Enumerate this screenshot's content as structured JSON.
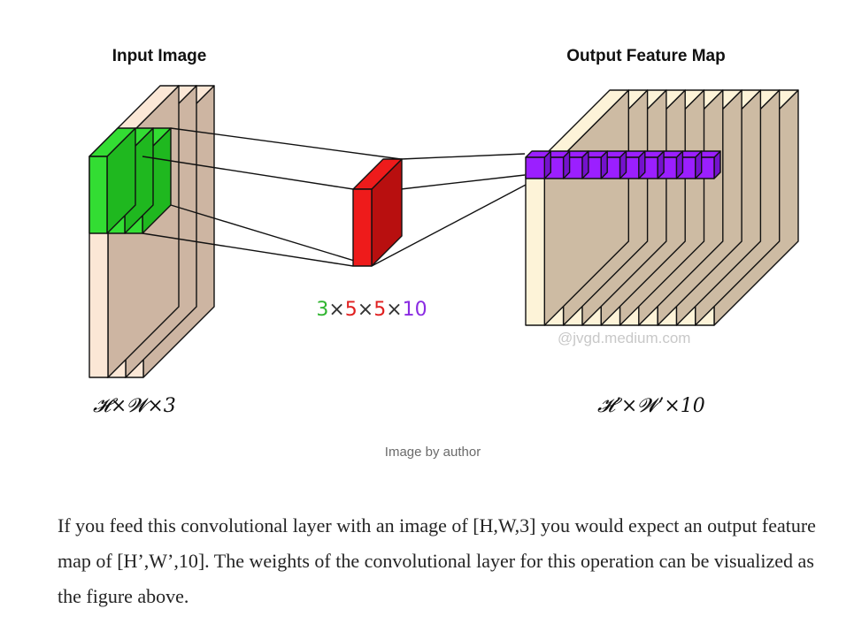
{
  "figure": {
    "input_title": "Input Image",
    "output_title": "Output Feature Map",
    "input_dims": "𝓗×𝓦×3",
    "output_dims": "𝓗’×𝓦’×10",
    "kernel_label": {
      "parts": [
        {
          "text": "3",
          "color": "#2fb52f"
        },
        {
          "text": "×",
          "color": "#333333"
        },
        {
          "text": "5",
          "color": "#e02020"
        },
        {
          "text": "×",
          "color": "#333333"
        },
        {
          "text": "5",
          "color": "#e02020"
        },
        {
          "text": "×",
          "color": "#333333"
        },
        {
          "text": "10",
          "color": "#8a2be2"
        }
      ]
    },
    "watermark": "@jvgd.medium.com",
    "colors": {
      "volume_front": "#fdf3d8",
      "volume_side": "#cdbba3",
      "input_front": "#fbe7d6",
      "input_side": "#cdb5a2",
      "green": "#33dd33",
      "green_side": "#1fb81f",
      "red": "#ee1b1b",
      "red_side": "#b80f0f",
      "purple": "#9b1fff",
      "purple_side": "#7412cc"
    }
  },
  "caption": "Image by author",
  "paragraph": "If you feed this convolutional layer with an image of [H,W,3] you would expect an output feature map of [H’,W’,10]. The weights of the convolutional layer for this operation can be visualized as the figure above."
}
